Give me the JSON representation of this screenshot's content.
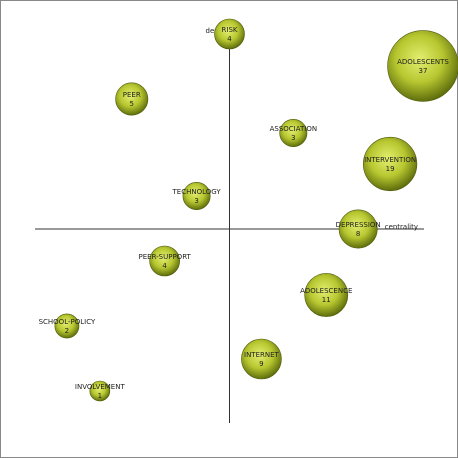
{
  "chart_data": {
    "type": "bubble",
    "x_label": "centrality",
    "y_label": "density",
    "xlim": [
      -195,
      195
    ],
    "ylim": [
      -194,
      184
    ],
    "color": "#b7c730",
    "points": [
      {
        "label": "RISK",
        "x": 0,
        "y": 195,
        "size": 4
      },
      {
        "label": "ADOLESCENTS",
        "x": 194,
        "y": 163,
        "size": 37
      },
      {
        "label": "PEER",
        "x": -98,
        "y": 130,
        "size": 5
      },
      {
        "label": "ASSOCIATION",
        "x": 64,
        "y": 96,
        "size": 3
      },
      {
        "label": "INTERVENTION",
        "x": 161,
        "y": 65,
        "size": 19
      },
      {
        "label": "TECHNOLOGY",
        "x": -33,
        "y": 33,
        "size": 3
      },
      {
        "label": "DEPRESSION",
        "x": 129,
        "y": 0,
        "size": 8
      },
      {
        "label": "PEER-SUPPORT",
        "x": -65,
        "y": -32,
        "size": 4
      },
      {
        "label": "ADOLESCENCE",
        "x": 97,
        "y": -66,
        "size": 11
      },
      {
        "label": "SCHOOL-POLICY",
        "x": -163,
        "y": -97,
        "size": 2
      },
      {
        "label": "INTERNET",
        "x": 32,
        "y": -130,
        "size": 9
      },
      {
        "label": "INVOLVEMENT",
        "x": -130,
        "y": -162,
        "size": 1
      }
    ]
  }
}
